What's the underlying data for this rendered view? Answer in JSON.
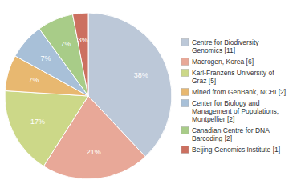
{
  "chart_data": {
    "type": "pie",
    "categories": [
      "Centre for Biodiversity\nGenomics [11]",
      "Macrogen, Korea [6]",
      "Karl-Franzens University of\nGraz [5]",
      "Mined from GenBank, NCBI [2]",
      "Center for Biology and\nManagement of Populations,\nMontpellier [2]",
      "Canadian Centre for DNA\nBarcoding [2]",
      "Beijing Genomics Institute [1]"
    ],
    "values": [
      38,
      21,
      17,
      7,
      7,
      7,
      3
    ],
    "value_labels": [
      "38%",
      "21%",
      "17%",
      "7%",
      "7%",
      "7%",
      "3%"
    ],
    "colors": [
      "#bcc8d8",
      "#e8a898",
      "#ccd888",
      "#e8b870",
      "#a8c0d8",
      "#a8cc88",
      "#cc7060"
    ],
    "data_labels": true,
    "legend": "right"
  }
}
